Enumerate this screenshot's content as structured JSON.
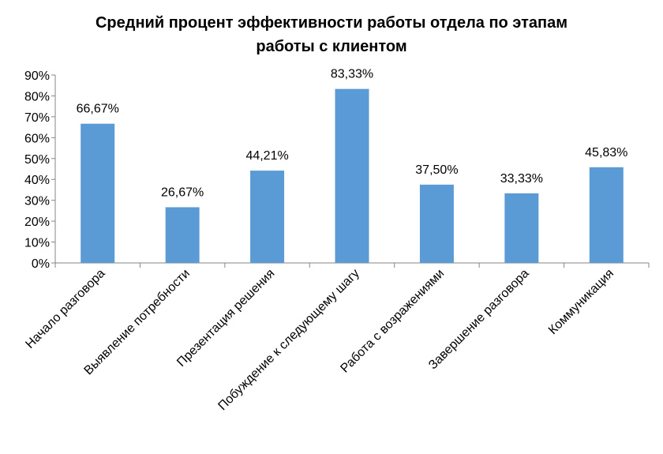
{
  "chart_data": {
    "type": "bar",
    "title_lines": [
      "Средний процент эффективности работы отдела по этапам",
      "работы с клиентом"
    ],
    "categories": [
      "Начало разговора",
      "Выявление потребности",
      "Презентация решения",
      "Побуждение к следующему шагу",
      "Работа с возражениями",
      "Завершение разговора",
      "Коммуникация"
    ],
    "values": [
      66.67,
      26.67,
      44.21,
      83.33,
      37.5,
      33.33,
      45.83
    ],
    "data_labels": [
      "66,67%",
      "26,67%",
      "44,21%",
      "83,33%",
      "37,50%",
      "33,33%",
      "45,83%"
    ],
    "ylim": [
      0,
      90
    ],
    "yticks": [
      0,
      10,
      20,
      30,
      40,
      50,
      60,
      70,
      80,
      90
    ],
    "ytick_labels": [
      "0%",
      "10%",
      "20%",
      "30%",
      "40%",
      "50%",
      "60%",
      "70%",
      "80%",
      "90%"
    ],
    "bar_color": "#5b9bd5",
    "grid": false,
    "legend": "none"
  }
}
